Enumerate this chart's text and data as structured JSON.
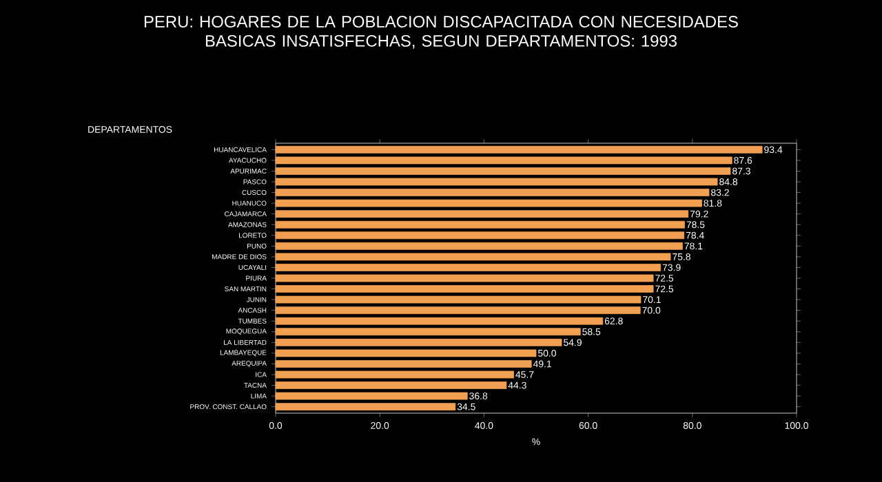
{
  "chart_data": {
    "type": "bar",
    "orientation": "horizontal",
    "title": "PERU: HOGARES DE LA POBLACION DISCAPACITADA CON NECESIDADES BASICAS INSATISFECHAS, SEGUN DEPARTAMENTOS: 1993",
    "ylabel": "DEPARTAMENTOS",
    "xlabel": "%",
    "categories": [
      "HUANCAVELICA",
      "AYACUCHO",
      "APURIMAC",
      "PASCO",
      "CUSCO",
      "HUANUCO",
      "CAJAMARCA",
      "AMAZONAS",
      "LORETO",
      "PUNO",
      "MADRE DE DIOS",
      "UCAYALI",
      "PIURA",
      "SAN MARTIN",
      "JUNIN",
      "ANCASH",
      "TUMBES",
      "MOQUEGUA",
      "LA LIBERTAD",
      "LAMBAYEQUE",
      "AREQUIPA",
      "ICA",
      "TACNA",
      "LIMA",
      "PROV. CONST. CALLAO"
    ],
    "values": [
      93.4,
      87.6,
      87.3,
      84.8,
      83.2,
      81.8,
      79.2,
      78.5,
      78.4,
      78.1,
      75.8,
      73.9,
      72.5,
      72.5,
      70.1,
      70.0,
      62.8,
      58.5,
      54.9,
      50.0,
      49.1,
      45.7,
      44.3,
      36.8,
      34.5
    ],
    "color": "#f0a050",
    "value_labels": [
      "93.4",
      "87.6",
      "87.3",
      "84.8",
      "83.2",
      "81.8",
      "79.2",
      "78.5",
      "78.4",
      "78.1",
      "75.8",
      "73.9",
      "72.5",
      "72.5",
      "70.1",
      "70.0",
      "62.8",
      "58.5",
      "54.9",
      "50.0",
      "49.1",
      "45.7",
      "44.3",
      "36.8",
      "34.5"
    ],
    "xlim": [
      0,
      100
    ],
    "xticks": [
      {
        "value": 0,
        "label": "0.0"
      },
      {
        "value": 20,
        "label": "20.0"
      },
      {
        "value": 40,
        "label": "40.0"
      },
      {
        "value": 60,
        "label": "60.0"
      },
      {
        "value": 80,
        "label": "80.0"
      },
      {
        "value": 100,
        "label": "100.0"
      }
    ]
  }
}
